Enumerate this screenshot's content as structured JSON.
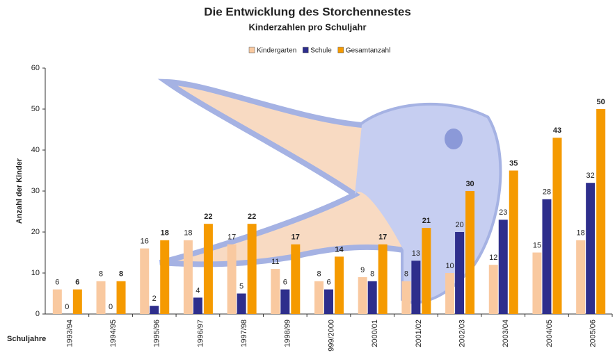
{
  "chart_data": {
    "type": "bar",
    "title": "Die Entwicklung des Storchennestes",
    "subtitle": "Kinderzahlen pro Schuljahr",
    "y_label": "Anzahl der Kinder",
    "x_label": "Schuljahre",
    "categories": [
      "1993/94",
      "1994/95",
      "1995/96",
      "1996/97",
      "1997/98",
      "1998/99",
      "999/2000",
      "2000/01",
      "2001/02",
      "2002/03",
      "2003/04",
      "2004/05",
      "2005/06"
    ],
    "series": [
      {
        "name": "Kindergarten",
        "color": "#f9c9a0",
        "values": [
          6,
          8,
          16,
          18,
          17,
          11,
          8,
          9,
          8,
          10,
          12,
          15,
          18
        ]
      },
      {
        "name": "Schule",
        "color": "#2e2e8c",
        "values": [
          0,
          0,
          2,
          4,
          5,
          6,
          6,
          8,
          13,
          20,
          23,
          28,
          32
        ]
      },
      {
        "name": "Gesamtanzahl",
        "color": "#f59a00",
        "values": [
          6,
          8,
          18,
          22,
          22,
          17,
          14,
          17,
          21,
          30,
          35,
          43,
          50
        ]
      }
    ],
    "ylim": [
      0,
      60
    ],
    "yticks": [
      0,
      10,
      20,
      30,
      40,
      50,
      60
    ],
    "grid": false,
    "legend": "top"
  }
}
